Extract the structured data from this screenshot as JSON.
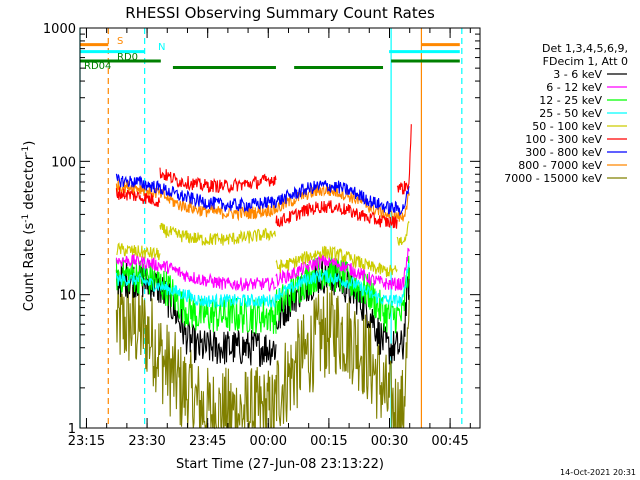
{
  "chart_data": {
    "type": "line",
    "title": "RHESSI Observing Summary Count Rates",
    "xlabel": "Start Time (27-Jun-08 23:13:22)",
    "ylabel_main": "Count Rate (s",
    "ylabel_sup": "-1",
    "ylabel_mid": " detector",
    "ylabel_end": ")",
    "x_unit": "minutes after 23:13:22",
    "xlim": [
      0,
      99
    ],
    "ylim": [
      1,
      1000
    ],
    "yscale": "log",
    "x_ticks": [
      {
        "x": 1.6,
        "label": "23:15"
      },
      {
        "x": 16.6,
        "label": "23:30"
      },
      {
        "x": 31.6,
        "label": "23:45"
      },
      {
        "x": 46.6,
        "label": "00:00"
      },
      {
        "x": 61.6,
        "label": "00:15"
      },
      {
        "x": 76.6,
        "label": "00:30"
      },
      {
        "x": 91.6,
        "label": "00:45"
      }
    ],
    "y_ticks": [
      {
        "y": 1,
        "label": "1"
      },
      {
        "y": 10,
        "label": "10"
      },
      {
        "y": 100,
        "label": "100"
      },
      {
        "y": 1000,
        "label": "1000"
      }
    ],
    "legend_header": [
      "Det 1,3,4,5,6,9,",
      "FDecim 1, Att 0"
    ],
    "series": [
      {
        "name": "3 - 6 keV",
        "color": "#000000",
        "segments": [
          {
            "x": [
              9,
              14,
              18,
              20,
              22,
              24,
              26,
              29,
              32,
              36,
              40,
              44,
              48.5
            ],
            "y": [
              13,
              13,
              12,
              11,
              9,
              7,
              5,
              4,
              4,
              4,
              4,
              4,
              4
            ]
          },
          {
            "x": [
              48.5,
              52,
              56,
              60,
              64,
              68,
              72,
              74,
              76,
              78.5,
              80,
              81.5
            ],
            "y": [
              6,
              9,
              12,
              14,
              13,
              10,
              7,
              5,
              4,
              4,
              4,
              13
            ]
          }
        ]
      },
      {
        "name": "6 - 12 keV",
        "color": "#ff00ff",
        "segments": [
          {
            "x": [
              9,
              14,
              18,
              22,
              26,
              30,
              36,
              40,
              44,
              48.5
            ],
            "y": [
              18,
              18,
              17,
              16,
              14,
              13,
              12,
              12,
              12,
              12
            ]
          },
          {
            "x": [
              48.5,
              52,
              56,
              60,
              64,
              68,
              72,
              76,
              78.5,
              80,
              81.5
            ],
            "y": [
              13,
              14,
              16,
              18,
              17,
              15,
              13,
              12,
              12,
              12,
              22
            ]
          }
        ]
      },
      {
        "name": "12 - 25 keV",
        "color": "#00ff00",
        "segments": [
          {
            "x": [
              9,
              14,
              18,
              20,
              22,
              24,
              26,
              29,
              32,
              36,
              40,
              44,
              48.5
            ],
            "y": [
              14,
              14,
              13,
              12,
              11,
              9,
              8,
              7,
              7,
              7,
              7,
              7,
              7
            ]
          },
          {
            "x": [
              48.5,
              52,
              56,
              60,
              64,
              68,
              72,
              74,
              76,
              78.5,
              80,
              81.5
            ],
            "y": [
              8,
              10,
              13,
              15,
              14,
              12,
              10,
              8,
              7,
              7,
              7,
              16
            ]
          }
        ]
      },
      {
        "name": "25 - 50 keV",
        "color": "#00ffff",
        "segments": [
          {
            "x": [
              9,
              14,
              18,
              22,
              26,
              30,
              36,
              40,
              44,
              48.5
            ],
            "y": [
              13,
              13,
              12,
              11,
              10,
              9,
              9,
              9,
              9,
              9
            ]
          },
          {
            "x": [
              48.5,
              52,
              56,
              60,
              64,
              68,
              72,
              76,
              78.5,
              80,
              81.5
            ],
            "y": [
              10,
              11,
              13,
              14,
              13,
              12,
              10,
              9,
              9,
              9,
              18
            ]
          }
        ]
      },
      {
        "name": "50 - 100 keV",
        "color": "#cccc00",
        "segments": [
          {
            "x": [
              9,
              14,
              19.8
            ],
            "y": [
              22,
              21,
              20
            ]
          },
          {
            "x": [
              19.8,
              24,
              30,
              36,
              42,
              48.5
            ],
            "y": [
              31,
              28,
              26,
              26,
              27,
              29
            ]
          },
          {
            "x": [
              48.5,
              52,
              56,
              60,
              64,
              68,
              72,
              76,
              78.5
            ],
            "y": [
              16,
              17,
              19,
              21,
              20,
              18,
              16,
              15,
              15
            ]
          },
          {
            "x": [
              78.5,
              80,
              81.5
            ],
            "y": [
              26,
              24,
              34
            ]
          }
        ]
      },
      {
        "name": "100 - 300 keV",
        "color": "#ff0000",
        "segments": [
          {
            "x": [
              9,
              14,
              19.8
            ],
            "y": [
              58,
              55,
              50
            ]
          },
          {
            "x": [
              19.8,
              24,
              30,
              36,
              42,
              48.5
            ],
            "y": [
              82,
              72,
              66,
              65,
              68,
              74
            ]
          },
          {
            "x": [
              48.5,
              52,
              56,
              60,
              64,
              68,
              72,
              76,
              78.5
            ],
            "y": [
              35,
              38,
              43,
              46,
              45,
              41,
              37,
              35,
              35
            ]
          },
          {
            "x": [
              78.5,
              80,
              81.5,
              82
            ],
            "y": [
              66,
              62,
              70,
              170
            ]
          }
        ]
      },
      {
        "name": "300 - 800 keV",
        "color": "#0000ff",
        "segments": [
          {
            "x": [
              9,
              14,
              19.8,
              24,
              30,
              36,
              42,
              48.5
            ],
            "y": [
              72,
              70,
              63,
              56,
              50,
              47,
              47,
              50
            ]
          },
          {
            "x": [
              48.5,
              52,
              56,
              60,
              64,
              68,
              72,
              76,
              80,
              81.5
            ],
            "y": [
              50,
              55,
              62,
              66,
              64,
              58,
              50,
              45,
              44,
              62
            ]
          }
        ]
      },
      {
        "name": "800 - 7000 keV",
        "color": "#ff8800",
        "segments": [
          {
            "x": [
              9,
              14,
              19.8,
              24,
              30,
              36,
              42,
              48.5
            ],
            "y": [
              66,
              64,
              57,
              48,
              43,
              41,
              41,
              44
            ]
          },
          {
            "x": [
              48.5,
              52,
              56,
              60,
              64,
              68,
              72,
              76,
              80,
              81.5
            ],
            "y": [
              44,
              50,
              57,
              61,
              59,
              53,
              45,
              40,
              38,
              55
            ]
          }
        ]
      },
      {
        "name": "7000 - 15000 keV",
        "color": "#808000",
        "segments": [
          {
            "x": [
              9,
              12,
              15,
              17,
              19,
              21,
              23,
              25,
              27,
              29,
              32,
              36,
              40,
              44,
              48.5
            ],
            "y": [
              6,
              6,
              5.5,
              5,
              4,
              3,
              2.5,
              2,
              1.8,
              1.5,
              1.3,
              1.3,
              1.3,
              1.3,
              1.3
            ]
          },
          {
            "x": [
              48.5,
              52,
              56,
              60,
              64,
              68,
              72,
              74,
              76,
              78.5,
              80,
              81.5
            ],
            "y": [
              1.8,
              2.5,
              3.5,
              5,
              5.5,
              4.5,
              3,
              2.3,
              1.6,
              1.3,
              1.3,
              5
            ]
          }
        ]
      }
    ],
    "noisy_series": [
      "3 - 6 keV",
      "12 - 25 keV",
      "7000 - 15000 keV"
    ],
    "state_bars": [
      {
        "label": "S",
        "color": "#ff8800",
        "y": 750,
        "spans": [
          [
            0,
            7
          ],
          [
            84.5,
            94
          ]
        ]
      },
      {
        "label": "N",
        "color": "#00ffff",
        "y": 665,
        "spans": [
          [
            0,
            16
          ],
          [
            76.5,
            94
          ]
        ]
      },
      {
        "label": "RD0",
        "color": "#008000",
        "y": 565,
        "spans": [
          [
            0,
            20
          ],
          [
            77,
            94
          ]
        ]
      },
      {
        "label": "RD04",
        "color": "#008000",
        "y": 505,
        "spans": [
          [
            23,
            48.5
          ],
          [
            53,
            75
          ]
        ]
      }
    ],
    "vertical_markers": [
      {
        "x": 0,
        "color": "#00ffff",
        "style": "solid"
      },
      {
        "x": 7,
        "color": "#ff8800",
        "style": "dashed"
      },
      {
        "x": 16,
        "color": "#00ffff",
        "style": "dashed"
      },
      {
        "x": 77,
        "color": "#00ffff",
        "style": "solid"
      },
      {
        "x": 84.5,
        "color": "#ff8800",
        "style": "solid"
      },
      {
        "x": 94.5,
        "color": "#00ffff",
        "style": "dashed"
      }
    ],
    "footer_date": "14-Oct-2021 20:31"
  }
}
